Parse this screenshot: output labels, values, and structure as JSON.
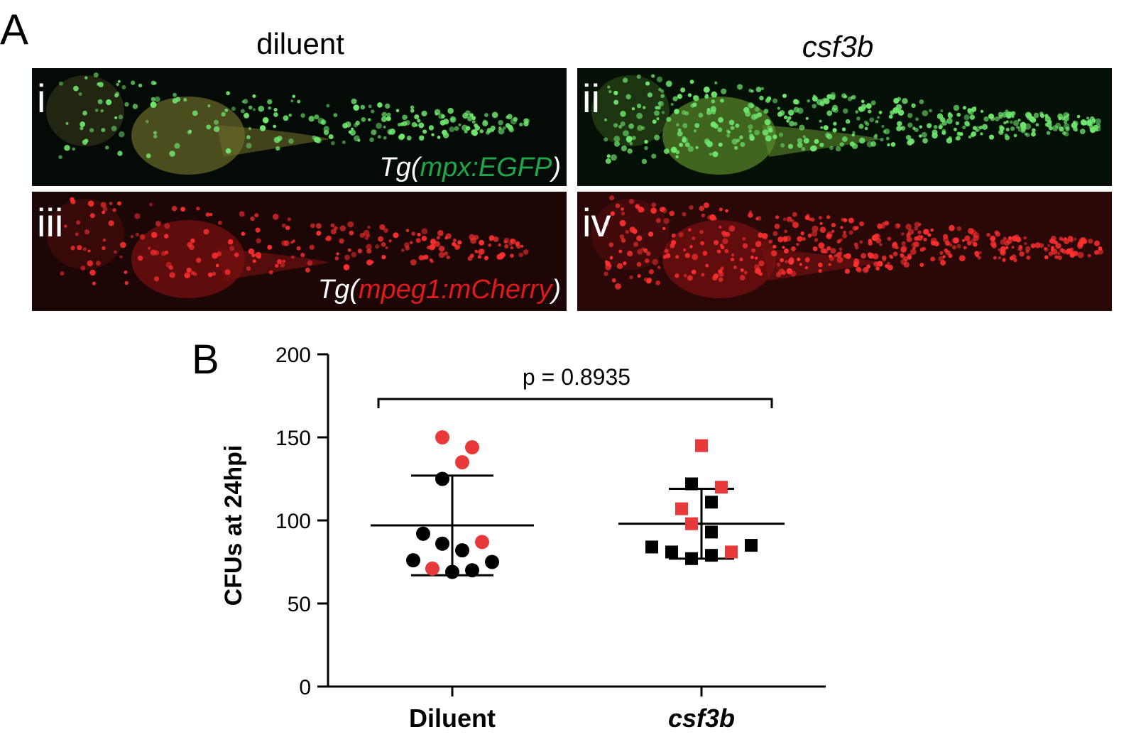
{
  "panel_a": {
    "label": "A",
    "col_titles": [
      "diluent",
      "csf3b"
    ],
    "panels": [
      "i",
      "ii",
      "iii",
      "iv"
    ],
    "reporters": [
      [
        "Tg(",
        "mpx:EGFP",
        ")"
      ],
      [
        "Tg(",
        "mpeg1:mCherry",
        ")"
      ]
    ]
  },
  "chart_data": {
    "type": "scatter",
    "panel_label": "B",
    "ylabel": "CFUs at 24hpi",
    "categories": [
      "Diluent",
      "csf3b"
    ],
    "ylim": [
      0,
      200
    ],
    "yticks": [
      0,
      50,
      100,
      150,
      200
    ],
    "annotation": "p = 0.8935",
    "series": [
      {
        "category": 0,
        "marker": "circle",
        "color": "#e8393a",
        "values": [
          150,
          144,
          135,
          87,
          71
        ]
      },
      {
        "category": 0,
        "marker": "circle",
        "color": "#000000",
        "values": [
          125,
          92,
          86,
          82,
          76,
          69,
          70,
          75
        ]
      },
      {
        "category": 1,
        "marker": "square",
        "color": "#e8393a",
        "values": [
          145,
          120,
          107,
          98,
          81
        ]
      },
      {
        "category": 1,
        "marker": "square",
        "color": "#000000",
        "values": [
          122,
          111,
          93,
          84,
          81,
          77,
          79,
          85
        ]
      }
    ],
    "error_bars": [
      {
        "mean": 97,
        "sd": 30
      },
      {
        "mean": 98,
        "sd": 21
      }
    ]
  }
}
